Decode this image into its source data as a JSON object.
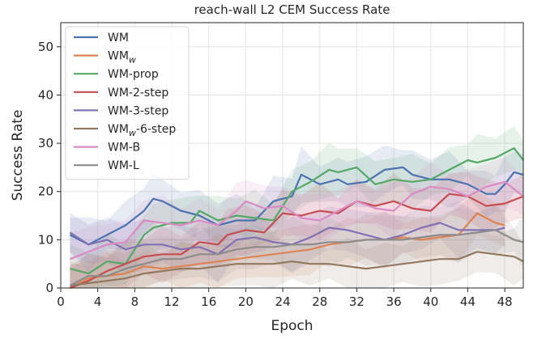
{
  "chart_data": {
    "type": "line",
    "title": "reach-wall L2 CEM Success Rate",
    "xlabel": "Epoch",
    "ylabel": "Success Rate",
    "xlim": [
      0,
      50
    ],
    "ylim": [
      0,
      55
    ],
    "xticks": [
      "0",
      "4",
      "8",
      "12",
      "16",
      "20",
      "24",
      "28",
      "32",
      "36",
      "40",
      "44",
      "48"
    ],
    "yticks": [
      "0",
      "10",
      "20",
      "30",
      "40",
      "50"
    ],
    "grid": true,
    "legend_position": "top-left",
    "series": [
      {
        "name": "WM",
        "name_base": "WM",
        "name_sub": "",
        "name_suffix": "",
        "color": "#4c72b0",
        "x": [
          1,
          3,
          5,
          7,
          9,
          10,
          11,
          13,
          15,
          17,
          19,
          21,
          23,
          25,
          26,
          28,
          30,
          31,
          33,
          35,
          37,
          38,
          40,
          42,
          44,
          46,
          47,
          48,
          49,
          50
        ],
        "y": [
          11,
          9,
          11,
          13,
          16,
          18.5,
          18,
          16,
          15,
          13,
          14,
          14,
          18,
          19,
          23.5,
          21.5,
          22.5,
          21.5,
          22,
          24.5,
          25,
          23.5,
          22.5,
          22.5,
          21.5,
          19.5,
          19.5,
          21.5,
          24,
          23.5
        ]
      },
      {
        "name": "WMw",
        "name_base": "WM",
        "name_sub": "w",
        "name_suffix": "",
        "color": "#dd8452",
        "x": [
          1,
          3,
          5,
          7,
          9,
          11,
          13,
          15,
          17,
          19,
          21,
          23,
          25,
          27,
          29,
          31,
          33,
          35,
          37,
          39,
          41,
          43,
          45,
          47,
          48
        ],
        "y": [
          0,
          2,
          2.5,
          3,
          4.5,
          4,
          4.5,
          5,
          5.5,
          6,
          6.5,
          7,
          7.5,
          8,
          9,
          9.5,
          10,
          10,
          10.5,
          10,
          10.5,
          11,
          15.5,
          13.5,
          13
        ]
      },
      {
        "name": "WM-prop",
        "name_base": "WM-prop",
        "name_sub": "",
        "name_suffix": "",
        "color": "#55a868",
        "x": [
          1,
          3,
          5,
          7,
          9,
          10,
          12,
          14,
          15,
          17,
          19,
          21,
          23,
          25,
          27,
          29,
          30,
          32,
          34,
          36,
          38,
          40,
          42,
          44,
          45,
          47,
          49,
          50
        ],
        "y": [
          4,
          3,
          5.5,
          5,
          11,
          12.5,
          13.5,
          13.5,
          16,
          14,
          15,
          14.5,
          14,
          20,
          22,
          24.5,
          24,
          25,
          21.5,
          22.5,
          22,
          22.5,
          24.5,
          26.5,
          26,
          27,
          29,
          26.5
        ]
      },
      {
        "name": "WM-2-step",
        "name_base": "WM-2-step",
        "name_sub": "",
        "name_suffix": "",
        "color": "#c44e52",
        "x": [
          1,
          3,
          5,
          7,
          9,
          11,
          13,
          15,
          17,
          18,
          20,
          22,
          24,
          26,
          28,
          30,
          32,
          34,
          36,
          38,
          40,
          42,
          44,
          46,
          48,
          50
        ],
        "y": [
          0,
          1.5,
          3.5,
          5,
          6.5,
          7,
          7,
          9.5,
          9,
          11,
          12,
          11.5,
          15.5,
          15,
          16,
          15.5,
          18,
          17,
          18,
          16.5,
          16,
          19.5,
          19,
          17,
          17.5,
          19
        ]
      },
      {
        "name": "WM-3-step",
        "name_base": "WM-3-step",
        "name_sub": "",
        "name_suffix": "",
        "color": "#8172b3",
        "x": [
          1,
          3,
          5,
          7,
          9,
          11,
          13,
          15,
          17,
          19,
          21,
          23,
          25,
          27,
          29,
          31,
          33,
          35,
          37,
          39,
          41,
          43,
          45,
          47,
          48
        ],
        "y": [
          11.5,
          9,
          10,
          8,
          9,
          9,
          8,
          8.5,
          7,
          10,
          10.5,
          9.5,
          9,
          10.5,
          12.5,
          12,
          11,
          10,
          11,
          12.5,
          13.5,
          12,
          12,
          12,
          12.5
        ]
      },
      {
        "name": "WMw-6-step",
        "name_base": "WM",
        "name_sub": "w",
        "name_suffix": "-6-step",
        "color": "#937860",
        "x": [
          1,
          3,
          5,
          7,
          9,
          11,
          13,
          15,
          17,
          19,
          21,
          23,
          25,
          27,
          29,
          31,
          33,
          35,
          37,
          39,
          41,
          43,
          45,
          47,
          49,
          50
        ],
        "y": [
          0.5,
          1,
          1.5,
          2,
          3,
          3.5,
          4,
          4,
          4.5,
          5,
          5,
          5,
          5.5,
          5,
          5,
          4.5,
          4,
          4.5,
          5,
          5.5,
          6,
          6,
          7.5,
          7,
          6.5,
          5.5
        ]
      },
      {
        "name": "WM-B",
        "name_base": "WM-B",
        "name_sub": "",
        "name_suffix": "",
        "color": "#da8bc3",
        "x": [
          1,
          3,
          5,
          7,
          9,
          11,
          13,
          15,
          17,
          19,
          20,
          22,
          24,
          26,
          28,
          30,
          32,
          34,
          36,
          38,
          40,
          42,
          44,
          46,
          48,
          50
        ],
        "y": [
          6,
          7.5,
          9,
          9.5,
          14,
          13.5,
          13,
          14,
          13,
          16,
          18,
          16.5,
          17,
          14.5,
          14,
          16,
          18,
          16.5,
          16,
          19.5,
          21,
          20.5,
          19,
          21,
          22,
          19
        ]
      },
      {
        "name": "WM-L",
        "name_base": "WM-L",
        "name_sub": "",
        "name_suffix": "",
        "color": "#8c8c8c",
        "x": [
          1,
          3,
          5,
          7,
          9,
          11,
          13,
          15,
          17,
          19,
          21,
          23,
          25,
          27,
          29,
          31,
          33,
          35,
          37,
          39,
          41,
          43,
          45,
          47,
          49,
          50
        ],
        "y": [
          0.5,
          2.5,
          2.5,
          4,
          5,
          6,
          6,
          7,
          7,
          8,
          8.5,
          8.5,
          9,
          9,
          9.5,
          9.5,
          10,
          10,
          10,
          10.5,
          11,
          11,
          11.5,
          12,
          10,
          9.5
        ]
      }
    ]
  }
}
